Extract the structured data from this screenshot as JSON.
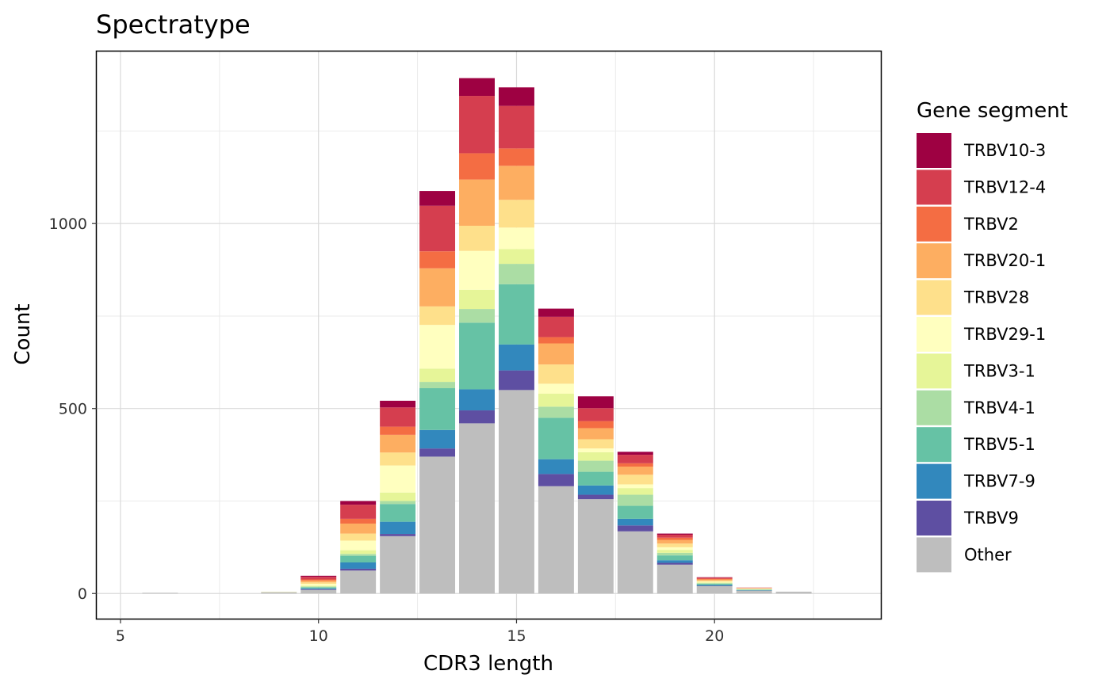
{
  "chart_data": {
    "type": "bar",
    "stacked": true,
    "title": "Spectratype",
    "xlabel": "CDR3 length",
    "ylabel": "Count",
    "xlim": [
      4.4,
      24.2
    ],
    "ylim": [
      -68,
      1465
    ],
    "x_ticks": [
      5,
      10,
      15,
      20
    ],
    "y_ticks": [
      0,
      500,
      1000
    ],
    "grid": true,
    "legend": {
      "title": "Gene segment",
      "position": "right"
    },
    "categories": [
      6,
      9,
      10,
      11,
      12,
      13,
      14,
      15,
      16,
      17,
      18,
      19,
      20,
      21,
      22
    ],
    "series": [
      {
        "name": "Other",
        "color": "#BEBEBE",
        "values": [
          2,
          4,
          10,
          62,
          155,
          370,
          460,
          550,
          290,
          255,
          168,
          78,
          20,
          8,
          5
        ]
      },
      {
        "name": "TRBV9",
        "color": "#5E4FA2",
        "values": [
          0,
          0,
          2,
          5,
          6,
          22,
          35,
          53,
          33,
          12,
          16,
          5,
          1,
          0,
          0
        ]
      },
      {
        "name": "TRBV7-9",
        "color": "#3288BD",
        "values": [
          0,
          0,
          2,
          17,
          33,
          50,
          57,
          70,
          40,
          25,
          18,
          7,
          2,
          1,
          0
        ]
      },
      {
        "name": "TRBV5-1",
        "color": "#66C2A5",
        "values": [
          0,
          0,
          3,
          18,
          48,
          113,
          180,
          163,
          112,
          37,
          35,
          13,
          3,
          1,
          0
        ]
      },
      {
        "name": "TRBV4-1",
        "color": "#ABDDA4",
        "values": [
          0,
          0,
          2,
          5,
          8,
          17,
          37,
          55,
          30,
          30,
          30,
          7,
          2,
          1,
          0
        ]
      },
      {
        "name": "TRBV3-1",
        "color": "#E6F598",
        "values": [
          0,
          0,
          2,
          10,
          23,
          36,
          52,
          40,
          35,
          23,
          18,
          8,
          2,
          1,
          0
        ]
      },
      {
        "name": "TRBV29-1",
        "color": "#FFFFBF",
        "values": [
          0,
          1,
          5,
          26,
          73,
          118,
          105,
          58,
          27,
          10,
          10,
          7,
          2,
          1,
          0
        ]
      },
      {
        "name": "TRBV28",
        "color": "#FEE08B",
        "values": [
          0,
          0,
          4,
          19,
          35,
          50,
          68,
          75,
          52,
          25,
          26,
          10,
          3,
          1,
          0
        ]
      },
      {
        "name": "TRBV20-1",
        "color": "#FDAE61",
        "values": [
          0,
          0,
          5,
          27,
          48,
          103,
          125,
          92,
          57,
          30,
          22,
          10,
          3,
          1,
          0
        ]
      },
      {
        "name": "TRBV2",
        "color": "#F46D43",
        "values": [
          0,
          0,
          3,
          13,
          22,
          46,
          71,
          47,
          17,
          19,
          9,
          6,
          2,
          0,
          0
        ]
      },
      {
        "name": "TRBV12-4",
        "color": "#D53E4F",
        "values": [
          0,
          0,
          7,
          38,
          52,
          123,
          155,
          115,
          55,
          35,
          23,
          8,
          3,
          1,
          0
        ]
      },
      {
        "name": "TRBV10-3",
        "color": "#9E0142",
        "values": [
          0,
          0,
          3,
          10,
          18,
          40,
          48,
          50,
          22,
          32,
          8,
          3,
          1,
          0,
          0
        ]
      }
    ]
  }
}
